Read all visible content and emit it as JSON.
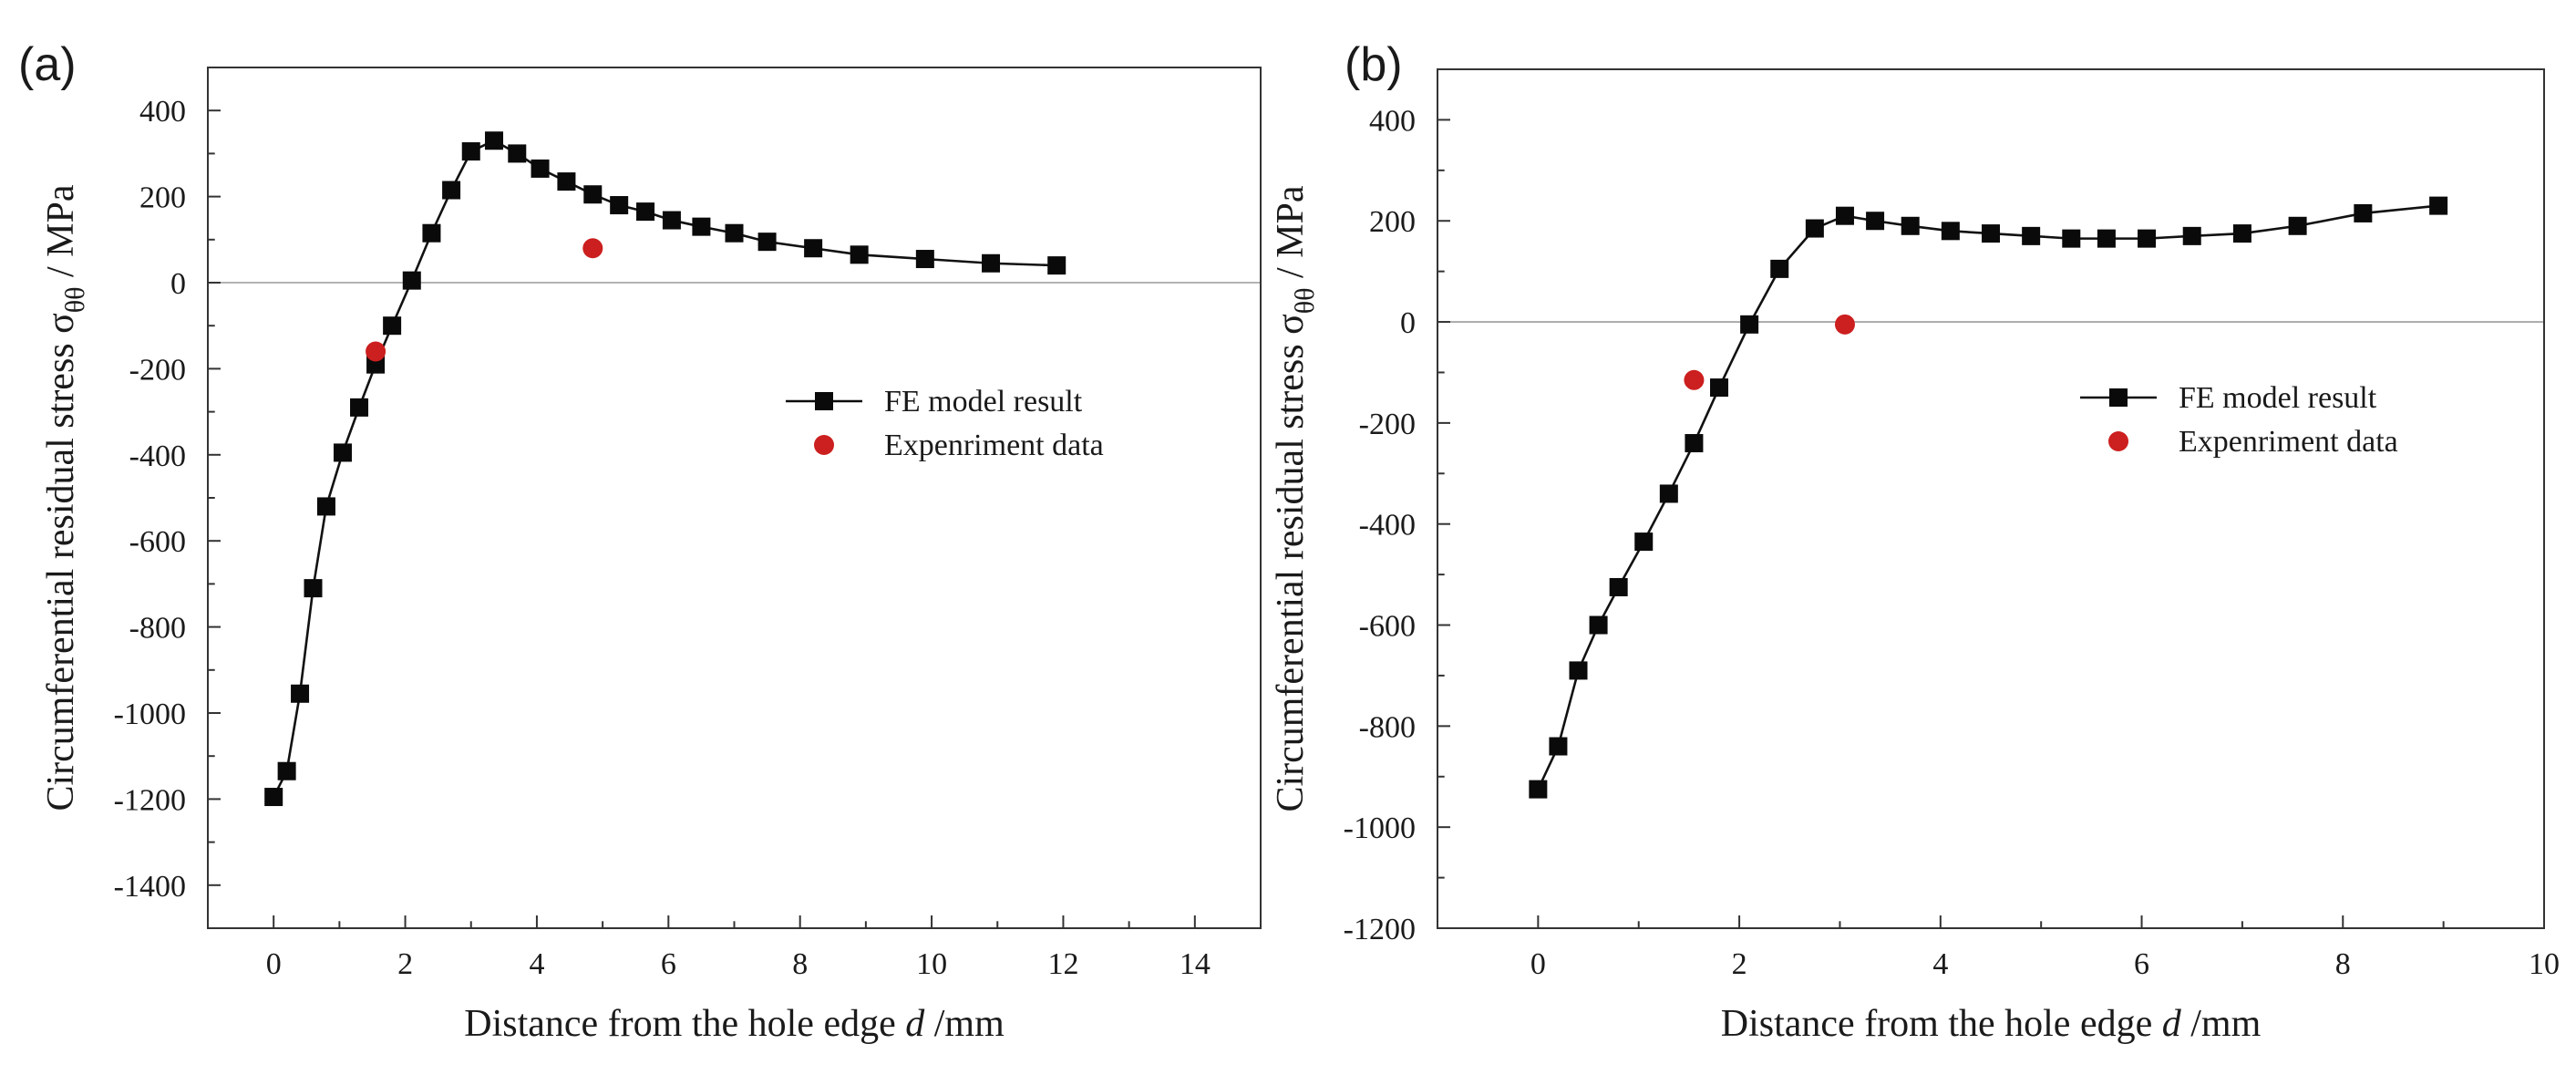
{
  "chart_data": [
    {
      "type": "line",
      "panel_label": "(a)",
      "xlabel_prefix": "Distance from the hole edge ",
      "xlabel_var": "d",
      "xlabel_suffix": " /mm",
      "ylabel_main": "Circumferential residual stress σ",
      "ylabel_sub": "θθ",
      "ylabel_suffix": " / MPa",
      "xlim": [
        -1,
        15
      ],
      "ylim": [
        -1500,
        500
      ],
      "xticks": [
        0,
        2,
        4,
        6,
        8,
        10,
        12,
        14
      ],
      "yticks": [
        400,
        200,
        0,
        -200,
        -400,
        -600,
        -800,
        -1000,
        -1200,
        -1400
      ],
      "legend_position": "center-right",
      "series": [
        {
          "name": "FE model result",
          "marker": "square",
          "color": "#0a0a0a",
          "line": true,
          "x": [
            0.0,
            0.2,
            0.4,
            0.6,
            0.8,
            1.05,
            1.3,
            1.55,
            1.8,
            2.1,
            2.4,
            2.7,
            3.0,
            3.35,
            3.7,
            4.05,
            4.45,
            4.85,
            5.25,
            5.65,
            6.05,
            6.5,
            7.0,
            7.5,
            8.2,
            8.9,
            9.9,
            10.9,
            11.9
          ],
          "y": [
            -1195,
            -1135,
            -955,
            -710,
            -520,
            -395,
            -290,
            -190,
            -100,
            5,
            115,
            215,
            305,
            330,
            300,
            265,
            235,
            205,
            180,
            165,
            145,
            130,
            115,
            95,
            80,
            65,
            55,
            45,
            40
          ]
        },
        {
          "name": "Expenriment data",
          "marker": "circle",
          "color": "#cc1f1f",
          "line": false,
          "x": [
            1.55,
            4.85
          ],
          "y": [
            -160,
            80
          ]
        }
      ]
    },
    {
      "type": "line",
      "panel_label": "(b)",
      "xlabel_prefix": "Distance from the hole edge ",
      "xlabel_var": "d",
      "xlabel_suffix": " /mm",
      "ylabel_main": "Circumferential residual stress σ",
      "ylabel_sub": "θθ",
      "ylabel_suffix": " / MPa",
      "xlim": [
        -1,
        10
      ],
      "ylim": [
        -1200,
        500
      ],
      "xticks": [
        0,
        2,
        4,
        6,
        8,
        10
      ],
      "yticks": [
        400,
        200,
        0,
        -200,
        -400,
        -600,
        -800,
        -1000,
        -1200
      ],
      "legend_position": "center-right",
      "series": [
        {
          "name": "FE model result",
          "marker": "square",
          "color": "#0a0a0a",
          "line": true,
          "x": [
            0.0,
            0.2,
            0.4,
            0.6,
            0.8,
            1.05,
            1.3,
            1.55,
            1.8,
            2.1,
            2.4,
            2.75,
            3.05,
            3.35,
            3.7,
            4.1,
            4.5,
            4.9,
            5.3,
            5.65,
            6.05,
            6.5,
            7.0,
            7.55,
            8.2,
            8.95
          ],
          "y": [
            -925,
            -840,
            -690,
            -600,
            -525,
            -435,
            -340,
            -240,
            -130,
            -5,
            105,
            185,
            210,
            200,
            190,
            180,
            175,
            170,
            165,
            165,
            165,
            170,
            175,
            190,
            215,
            230
          ]
        },
        {
          "name": "Expenriment data",
          "marker": "circle",
          "color": "#cc1f1f",
          "line": false,
          "x": [
            1.55,
            3.05
          ],
          "y": [
            -115,
            -5
          ]
        }
      ]
    }
  ]
}
